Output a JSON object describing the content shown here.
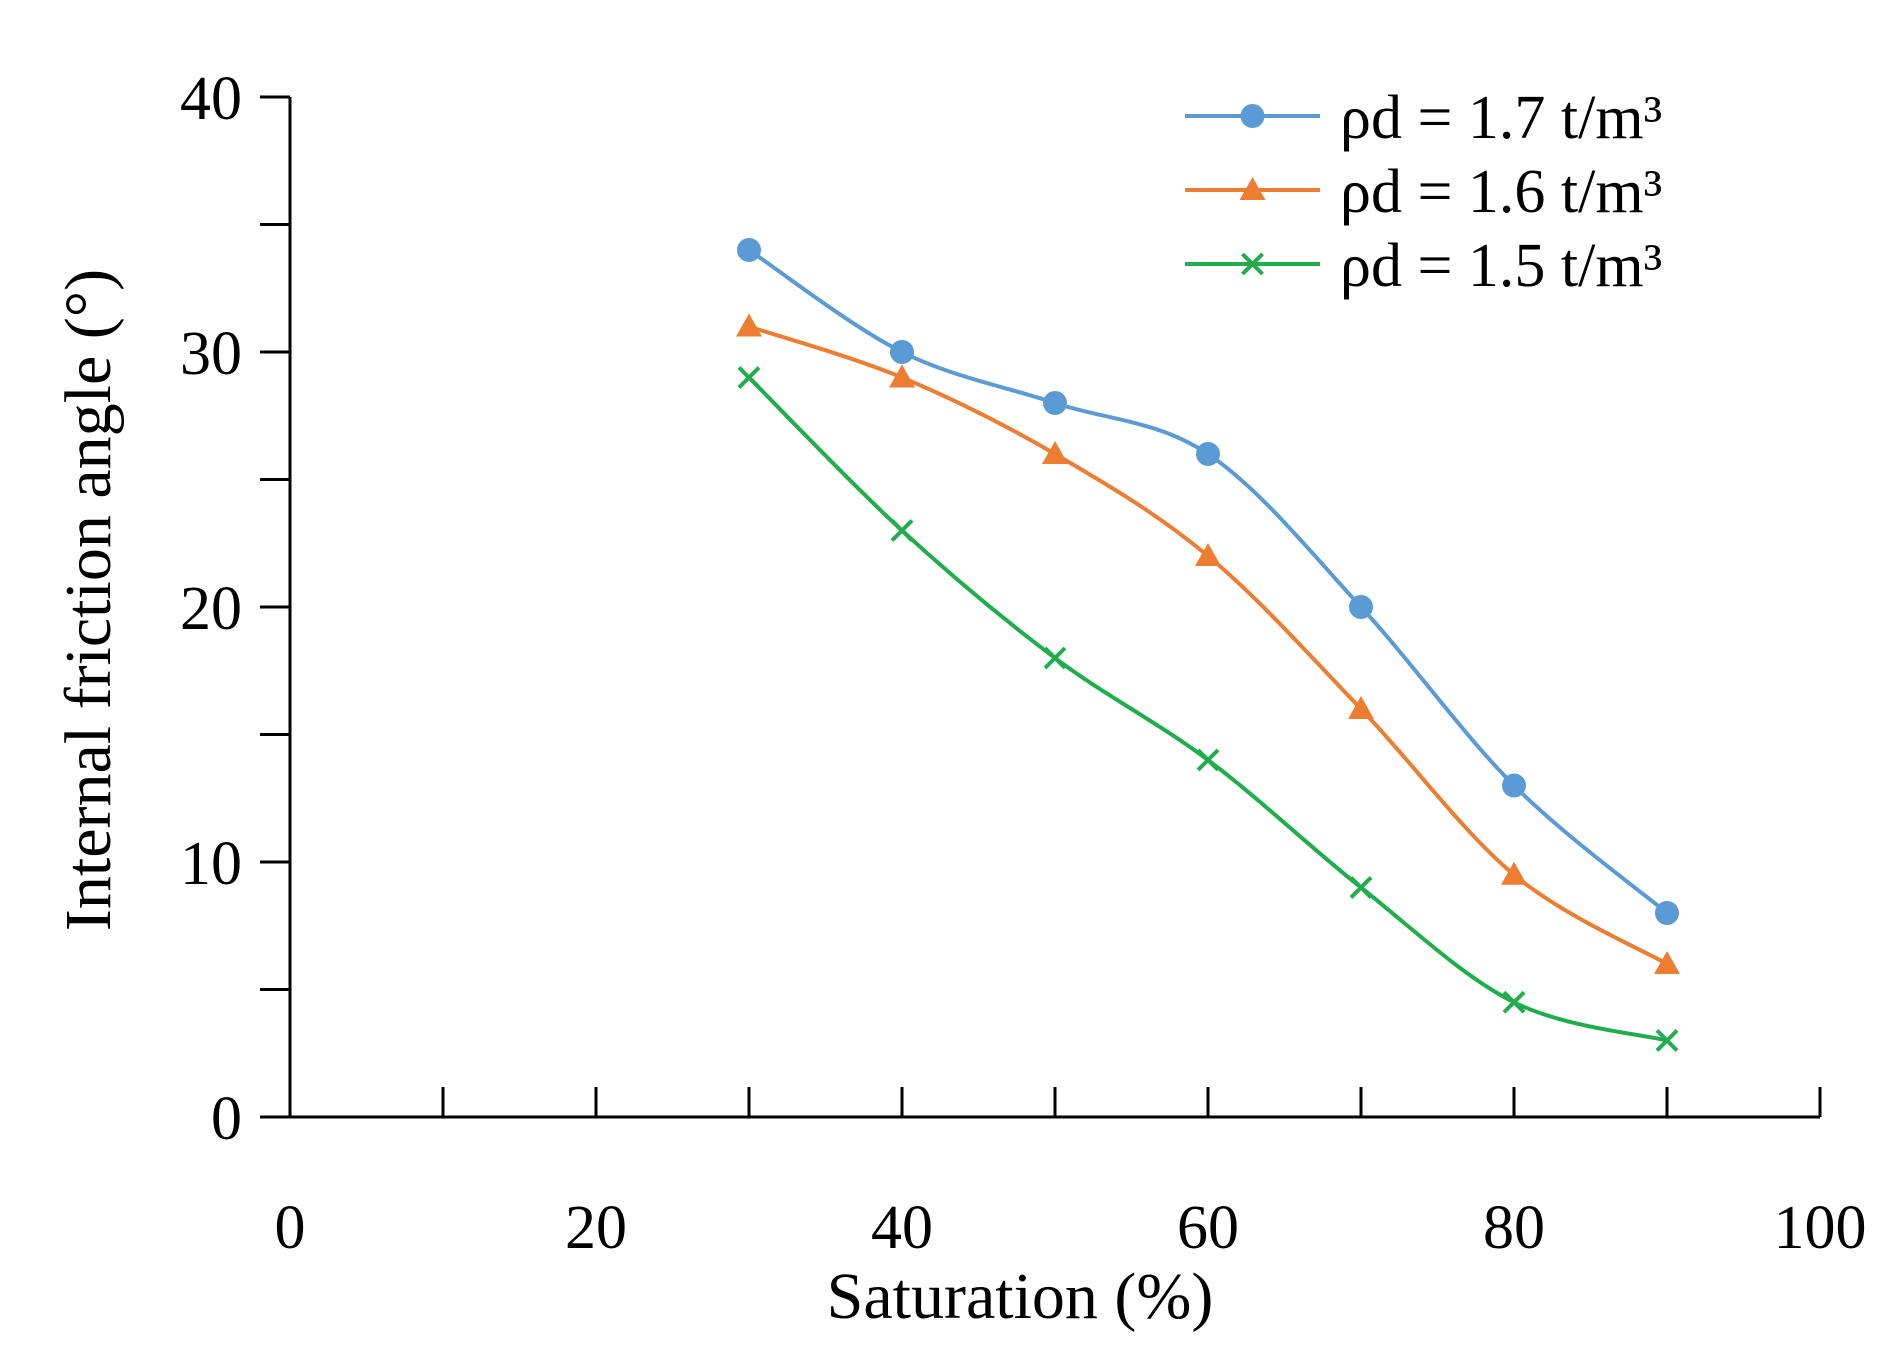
{
  "chart_data": {
    "type": "line",
    "title": "",
    "xlabel": "Saturation (%)",
    "ylabel": "Internal friction angle (°)",
    "xlim": [
      0,
      100
    ],
    "ylim": [
      0,
      40
    ],
    "x_major_ticks": [
      0,
      20,
      40,
      60,
      80,
      100
    ],
    "x_minor_ticks": [
      10,
      30,
      50,
      70,
      90
    ],
    "y_major_ticks": [
      0,
      10,
      20,
      30,
      40
    ],
    "y_minor_ticks": [
      5,
      15,
      25,
      35
    ],
    "x_tick_labels": [
      "0",
      "20",
      "40",
      "60",
      "80",
      "100"
    ],
    "y_tick_labels": [
      "0",
      "10",
      "20",
      "30",
      "40"
    ],
    "grid": false,
    "smooth": true,
    "legend_position": "top-right",
    "x": [
      30,
      40,
      50,
      60,
      70,
      80,
      90
    ],
    "series": [
      {
        "name": "ρd = 1.7 t/m³",
        "marker": "circle",
        "color": "#5b9bd5",
        "values": [
          34,
          30,
          28,
          26,
          20,
          13,
          8
        ]
      },
      {
        "name": "ρd = 1.6 t/m³",
        "marker": "triangle",
        "color": "#ed7d31",
        "values": [
          31,
          29,
          26,
          22,
          16,
          9.5,
          6
        ]
      },
      {
        "name": "ρd = 1.5 t/m³",
        "marker": "x",
        "color": "#1fae4b",
        "values": [
          29,
          23,
          18,
          14,
          9,
          4.5,
          3
        ]
      }
    ]
  }
}
